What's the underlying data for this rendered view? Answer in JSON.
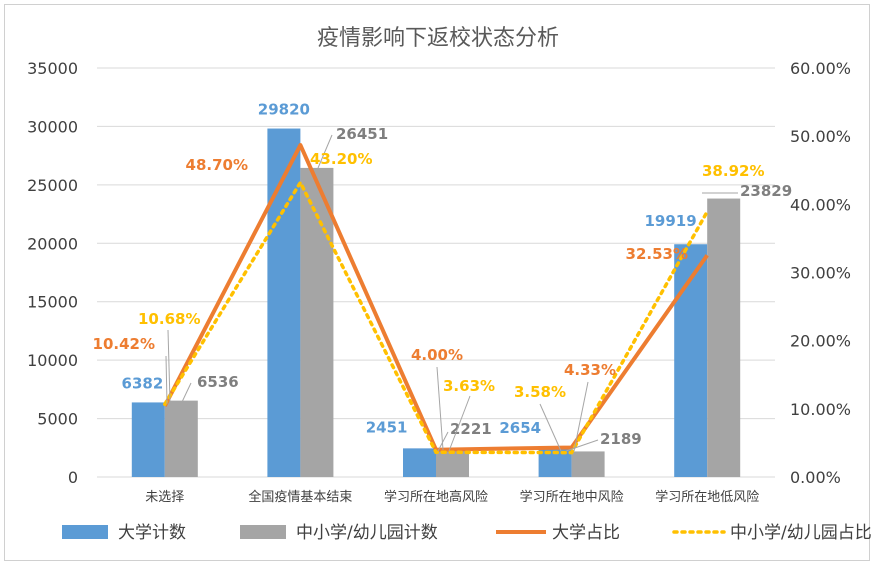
{
  "chart_data": {
    "type": "bar",
    "title": "疫情影响下返校状态分析",
    "categories": [
      "未选择",
      "全国疫情基本结束",
      "学习所在地高风险",
      "学习所在地中风险",
      "学习所在地低风险"
    ],
    "ylim": [
      0,
      35000
    ],
    "y_ticks": [
      "0",
      "5000",
      "10000",
      "15000",
      "20000",
      "25000",
      "30000",
      "35000"
    ],
    "y2lim": [
      0,
      60
    ],
    "y2_ticks": [
      "0.00%",
      "10.00%",
      "20.00%",
      "30.00%",
      "40.00%",
      "50.00%",
      "60.00%"
    ],
    "grid": true,
    "legend_position": "bottom",
    "series": [
      {
        "name": "大学计数",
        "kind": "bar",
        "axis": "left",
        "color": "#5B9BD5",
        "values": [
          6382,
          29820,
          2451,
          2654,
          19919
        ],
        "labels": [
          "6382",
          "29820",
          "2451",
          "2654",
          "19919"
        ]
      },
      {
        "name": "中小学/幼儿园计数",
        "kind": "bar",
        "axis": "left",
        "color": "#A5A5A5",
        "values": [
          6536,
          26451,
          2221,
          2189,
          23829
        ],
        "labels": [
          "6536",
          "26451",
          "2221",
          "2189",
          "23829"
        ]
      },
      {
        "name": "大学占比",
        "kind": "line",
        "axis": "right",
        "color": "#ED7D31",
        "values": [
          10.42,
          48.7,
          4.0,
          4.33,
          32.53
        ],
        "labels": [
          "10.42%",
          "48.70%",
          "4.00%",
          "4.33%",
          "32.53%"
        ]
      },
      {
        "name": "中小学/幼儿园占比",
        "kind": "dotted-line",
        "axis": "right",
        "color": "#FFC000",
        "values": [
          10.68,
          43.2,
          3.63,
          3.58,
          38.92
        ],
        "labels": [
          "10.68%",
          "43.20%",
          "3.63%",
          "3.58%",
          "38.92%"
        ]
      }
    ]
  }
}
